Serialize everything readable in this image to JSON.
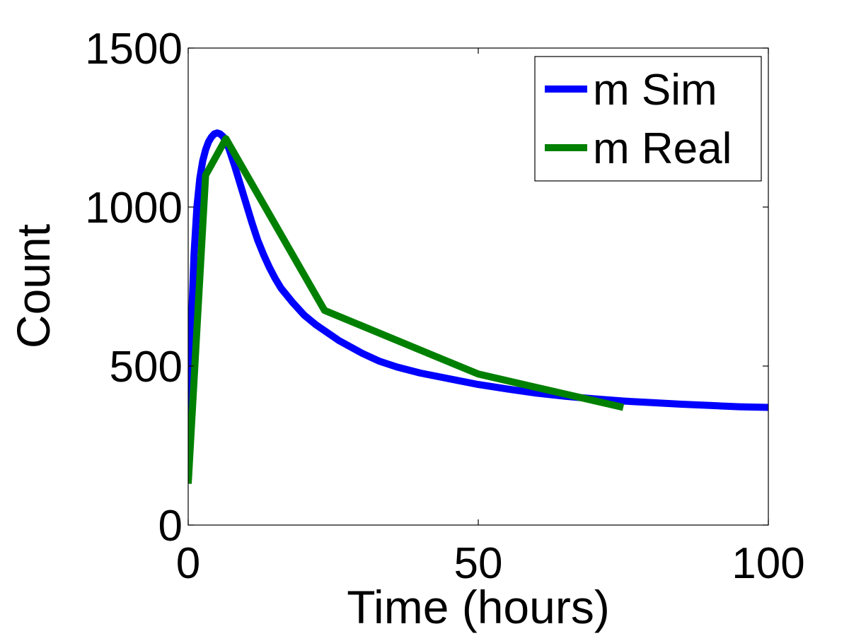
{
  "chart_data": {
    "type": "line",
    "title": "",
    "xlabel": "Time (hours)",
    "ylabel": "Count",
    "xlim": [
      0,
      100
    ],
    "ylim": [
      0,
      1500
    ],
    "xticks": [
      0,
      50,
      100
    ],
    "yticks": [
      0,
      500,
      1000,
      1500
    ],
    "grid": false,
    "legend_position": "top-right",
    "series": [
      {
        "name": "m Sim",
        "color": "#0000ff",
        "x": [
          0,
          0.5,
          1,
          1.5,
          2,
          2.5,
          3,
          3.5,
          4,
          4.5,
          5,
          5.5,
          6,
          6.5,
          7,
          8,
          9,
          10,
          11,
          12,
          13,
          14,
          15,
          16,
          18,
          20,
          22,
          24,
          26,
          28,
          30,
          33,
          36,
          40,
          45,
          50,
          55,
          60,
          65,
          70,
          75,
          80,
          85,
          90,
          95,
          100
        ],
        "y": [
          280,
          600,
          850,
          1000,
          1090,
          1145,
          1180,
          1205,
          1220,
          1230,
          1233,
          1230,
          1222,
          1205,
          1185,
          1130,
          1070,
          1010,
          950,
          895,
          850,
          810,
          775,
          745,
          700,
          660,
          630,
          605,
          580,
          560,
          540,
          515,
          497,
          478,
          460,
          442,
          428,
          415,
          405,
          397,
          390,
          385,
          380,
          376,
          372,
          370
        ]
      },
      {
        "name": "m Real",
        "color": "#008000",
        "x": [
          0,
          3,
          6.5,
          23.5,
          50,
          75
        ],
        "y": [
          130,
          1100,
          1215,
          675,
          475,
          370
        ]
      }
    ]
  }
}
